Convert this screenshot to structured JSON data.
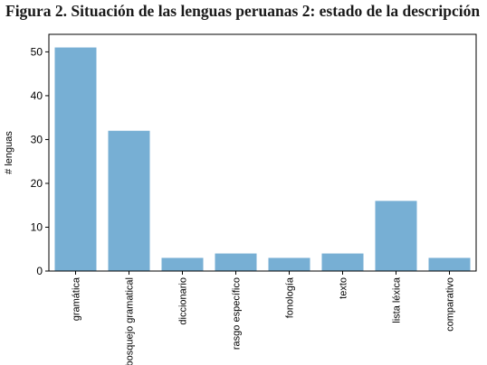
{
  "chart_data": {
    "type": "bar",
    "title": "Figura 2. Situación de las lenguas peruanas 2: estado de la descripción",
    "xlabel": "",
    "ylabel": "# lenguas",
    "categories": [
      "gramática",
      "bosquejo gramatical",
      "diccionario",
      "rasgo específico",
      "fonología",
      "texto",
      "lista léxica",
      "comparativo"
    ],
    "values": [
      51,
      32,
      3,
      4,
      3,
      4,
      16,
      3
    ],
    "ylim": [
      0,
      54
    ],
    "yticks": [
      0,
      10,
      20,
      30,
      40,
      50
    ],
    "bar_color": "#77afd4",
    "grid": false,
    "legend": "none"
  }
}
